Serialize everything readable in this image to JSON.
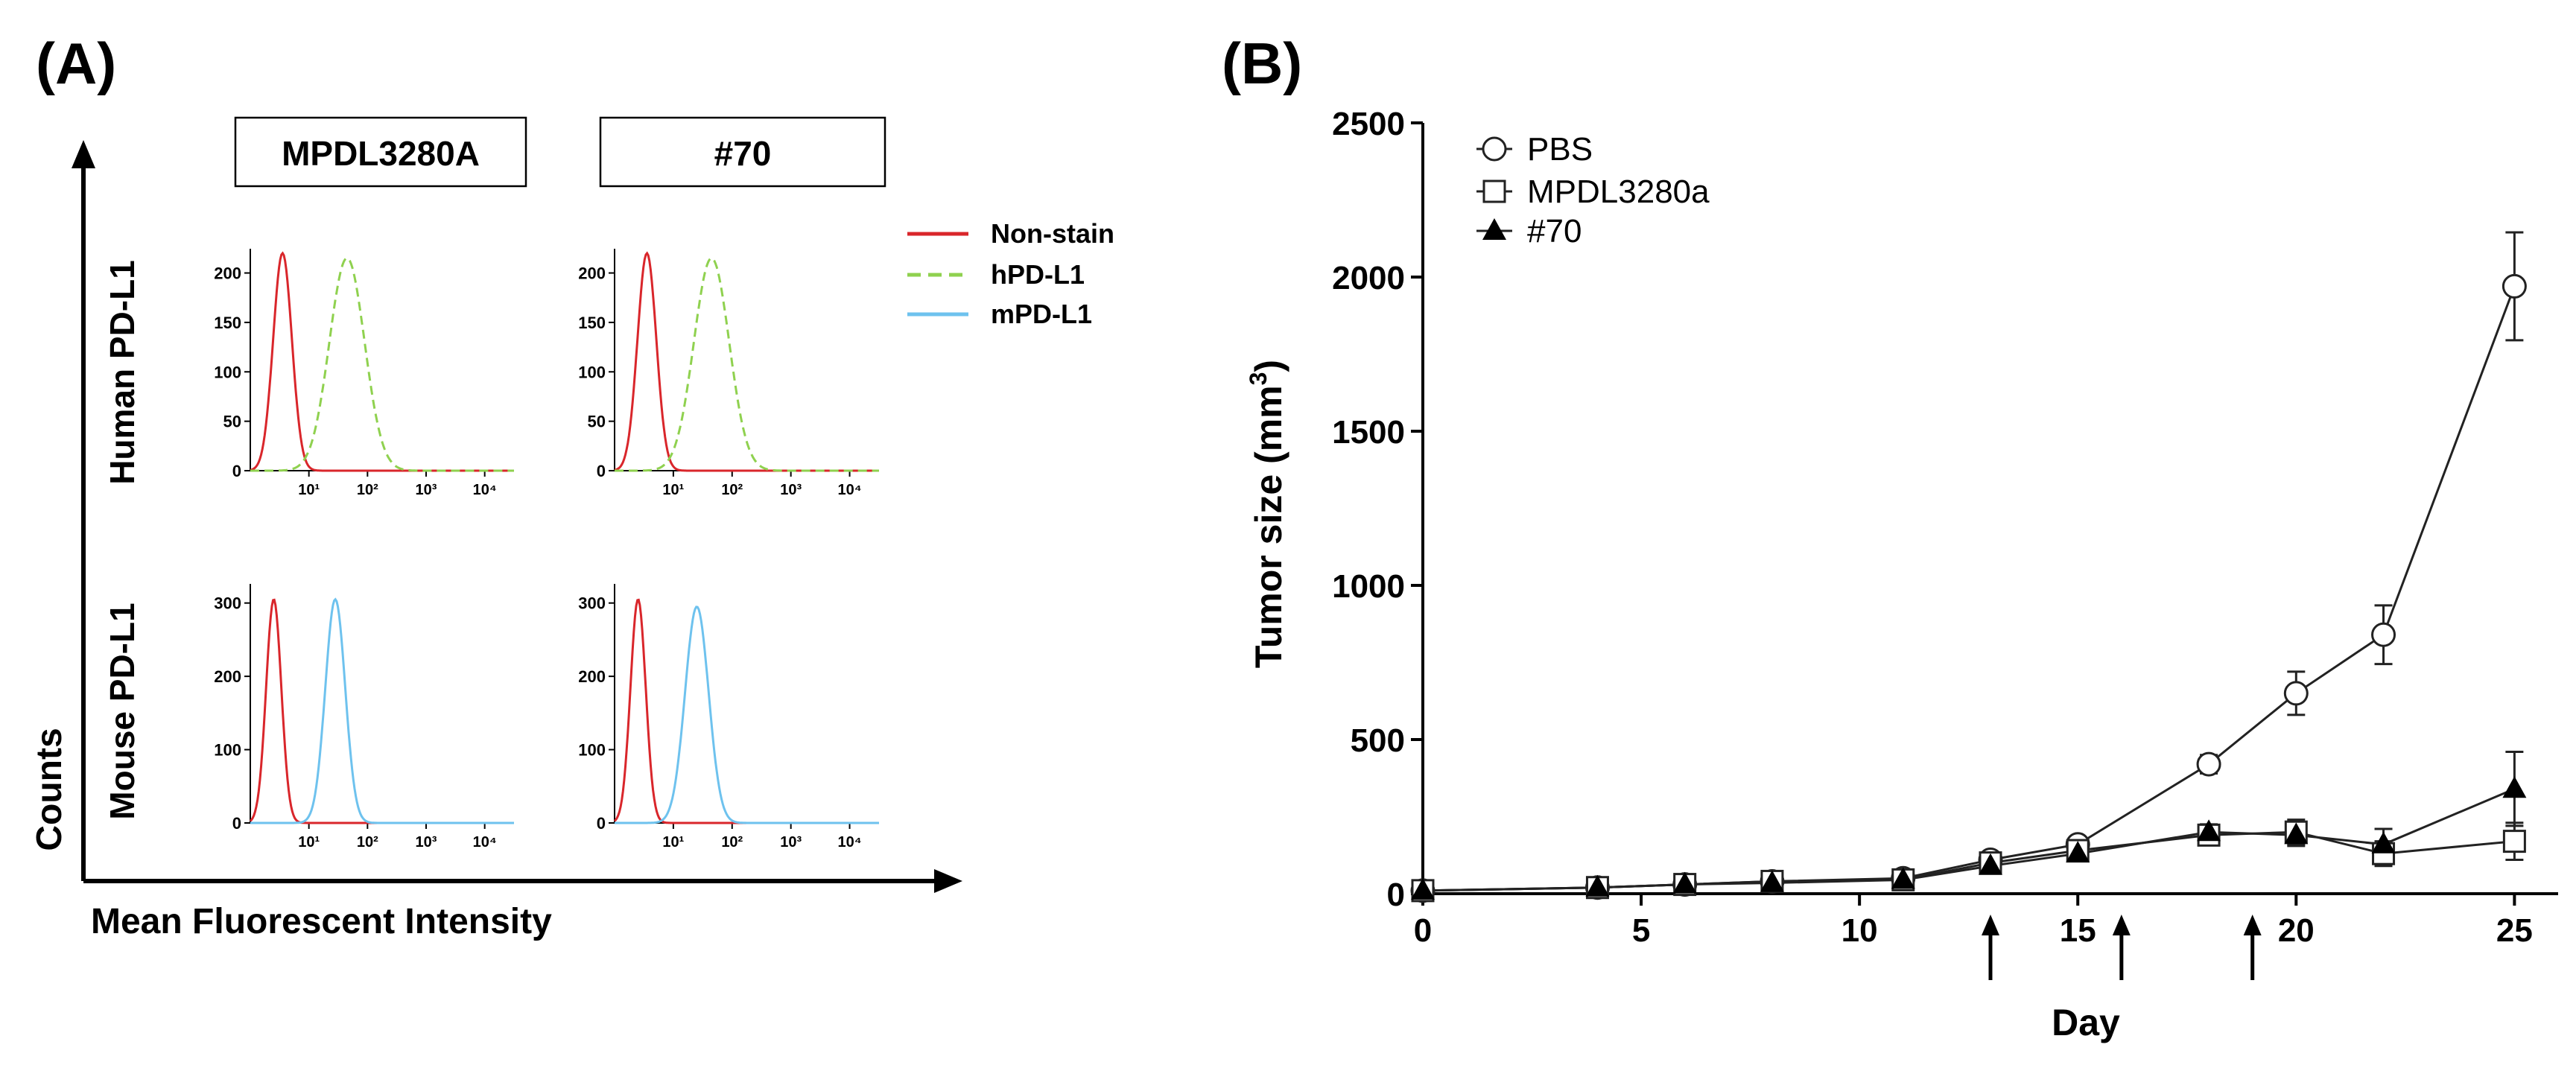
{
  "panel_a": {
    "label": "(A)",
    "headers": [
      "MPDL3280A",
      "#70"
    ],
    "row_labels": [
      "Human PD-L1",
      "Mouse PD-L1"
    ],
    "y_axis_label": "Counts",
    "x_axis_label": "Mean Fluorescent Intensity",
    "legend": [
      {
        "name": "Non-stain",
        "color": "#d9262b",
        "dash": "none"
      },
      {
        "name": "hPD-L1",
        "color": "#8fd14f",
        "dash": "18 10"
      },
      {
        "name": "mPD-L1",
        "color": "#6ec2ee",
        "dash": "none"
      }
    ],
    "colors": {
      "nonstain": "#d9262b",
      "hpdl1": "#8fd14f",
      "mpdl1": "#6ec2ee"
    }
  },
  "panel_b": {
    "label": "(B)",
    "colors": {
      "line": "#222222",
      "arrow": "#000000"
    }
  },
  "chart_data": [
    {
      "type": "line",
      "title": "",
      "subtitle": "histogram panels",
      "xlabel": "",
      "ylabel": "",
      "panels": [
        {
          "row": "Human PD-L1",
          "col": "MPDL3280A",
          "ylim": [
            0,
            220
          ],
          "yticks": [
            "0",
            "50",
            "100",
            "150",
            "200"
          ],
          "xticks": [
            "10¹",
            "10²",
            "10³",
            "10⁴"
          ],
          "series": [
            {
              "name": "Non-stain",
              "peak_log_mfi": 0.55,
              "width": 0.16,
              "peak_count": 220
            },
            {
              "name": "hPD-L1",
              "peak_log_mfi": 1.65,
              "width": 0.3,
              "peak_count": 215
            }
          ]
        },
        {
          "row": "Human PD-L1",
          "col": "#70",
          "ylim": [
            0,
            220
          ],
          "yticks": [
            "0",
            "50",
            "100",
            "150",
            "200"
          ],
          "xticks": [
            "10¹",
            "10²",
            "10³",
            "10⁴"
          ],
          "series": [
            {
              "name": "Non-stain",
              "peak_log_mfi": 0.55,
              "width": 0.16,
              "peak_count": 220
            },
            {
              "name": "hPD-L1",
              "peak_log_mfi": 1.65,
              "width": 0.3,
              "peak_count": 215
            }
          ]
        },
        {
          "row": "Mouse PD-L1",
          "col": "MPDL3280A",
          "ylim": [
            0,
            320
          ],
          "yticks": [
            "0",
            "100",
            "200",
            "300"
          ],
          "xticks": [
            "10¹",
            "10²",
            "10³",
            "10⁴"
          ],
          "series": [
            {
              "name": "Non-stain",
              "peak_log_mfi": 0.4,
              "width": 0.13,
              "peak_count": 305
            },
            {
              "name": "mPD-L1",
              "peak_log_mfi": 1.45,
              "width": 0.17,
              "peak_count": 305
            }
          ]
        },
        {
          "row": "Mouse PD-L1",
          "col": "#70",
          "ylim": [
            0,
            320
          ],
          "yticks": [
            "0",
            "100",
            "200",
            "300"
          ],
          "xticks": [
            "10¹",
            "10²",
            "10³",
            "10⁴"
          ],
          "series": [
            {
              "name": "Non-stain",
              "peak_log_mfi": 0.4,
              "width": 0.13,
              "peak_count": 305
            },
            {
              "name": "mPD-L1",
              "peak_log_mfi": 1.4,
              "width": 0.2,
              "peak_count": 295
            }
          ]
        }
      ]
    },
    {
      "type": "line",
      "title": "",
      "xlabel": "Day",
      "ylabel": "Tumor size (mm",
      "ylabel_sup": "3",
      "ylabel_close": ")",
      "xlim": [
        0,
        26
      ],
      "ylim": [
        0,
        2500
      ],
      "xticks": [
        0,
        5,
        10,
        15,
        20,
        25
      ],
      "yticks": [
        0,
        500,
        1000,
        1500,
        2000,
        2500
      ],
      "arrows_at_day": [
        13,
        16,
        19
      ],
      "series": [
        {
          "name": "PBS",
          "marker": "circle",
          "x": [
            0,
            4,
            6,
            8,
            11,
            13,
            15,
            18,
            20,
            22,
            25
          ],
          "y": [
            10,
            20,
            30,
            40,
            50,
            110,
            160,
            420,
            650,
            840,
            1970
          ],
          "err": [
            5,
            5,
            5,
            5,
            8,
            15,
            20,
            30,
            70,
            95,
            175
          ]
        },
        {
          "name": "MPDL3280a",
          "marker": "square",
          "x": [
            0,
            4,
            6,
            8,
            11,
            13,
            15,
            18,
            20,
            22,
            25
          ],
          "y": [
            10,
            20,
            30,
            40,
            45,
            100,
            140,
            190,
            200,
            130,
            170
          ],
          "err": [
            5,
            5,
            5,
            5,
            8,
            12,
            18,
            25,
            40,
            40,
            60
          ]
        },
        {
          "name": "#70",
          "marker": "triangle",
          "x": [
            0,
            4,
            6,
            8,
            11,
            13,
            15,
            18,
            20,
            22,
            25
          ],
          "y": [
            10,
            20,
            30,
            35,
            45,
            90,
            130,
            200,
            190,
            160,
            340
          ],
          "err": [
            5,
            5,
            5,
            5,
            8,
            12,
            18,
            25,
            35,
            50,
            120
          ]
        }
      ]
    }
  ]
}
